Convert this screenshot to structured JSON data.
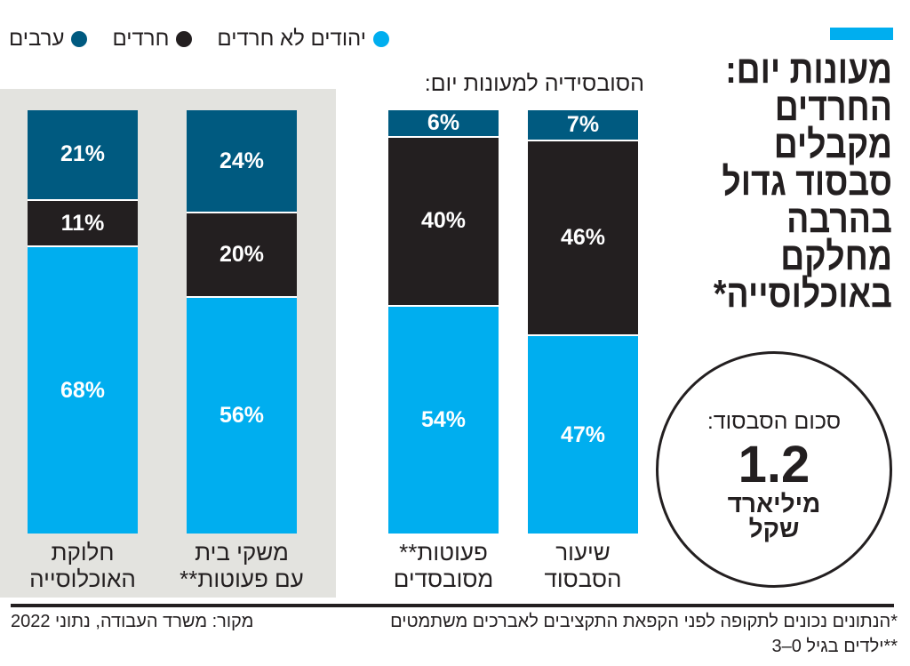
{
  "title": "מעונות יום: החרדים מקבלים סבסוד גדול בהרבה מחלקם באוכלוסייה*",
  "colors": {
    "arabs": "#005a80",
    "haredim": "#231f20",
    "jews": "#00aeef",
    "panel": "#e3e3df"
  },
  "legend": [
    {
      "label": "ערבים",
      "color": "#005a80"
    },
    {
      "label": "חרדים",
      "color": "#231f20"
    },
    {
      "label": "יהודים לא חרדים",
      "color": "#00aeef"
    }
  ],
  "subtitle": "הסובסידיה למעונות יום:",
  "chart_data": {
    "type": "bar",
    "stacked": true,
    "categories": [
      "שיעור\nהסבסוד",
      "פעוטות**\nמסובסדים",
      "משקי בית\nעם פעוטות**",
      "חלוקת\nהאוכלוסייה"
    ],
    "series": [
      {
        "name": "יהודים לא חרדים",
        "values": [
          47,
          54,
          56,
          68
        ],
        "labels": [
          "47%",
          "54%",
          "56%",
          "68%"
        ]
      },
      {
        "name": "חרדים",
        "values": [
          46,
          40,
          20,
          11
        ],
        "labels": [
          "46%",
          "40%",
          "20%",
          "11%"
        ]
      },
      {
        "name": "ערבים",
        "values": [
          7,
          6,
          24,
          21
        ],
        "labels": [
          "7%",
          "6%",
          "24%",
          "21%"
        ]
      }
    ],
    "ylim": [
      0,
      100
    ]
  },
  "callout": {
    "label": "סכום הסבסוד:",
    "value": "1.2",
    "unit": "מיליארד\nשקל"
  },
  "footnotes": {
    "note1": "*הנתונים נכונים לתקופה לפני הקפאת התקציבים לאברכים משתמטים",
    "note2": "**ילדים בגיל 0–3",
    "source": "מקור: משרד העבודה, נתוני 2022"
  }
}
